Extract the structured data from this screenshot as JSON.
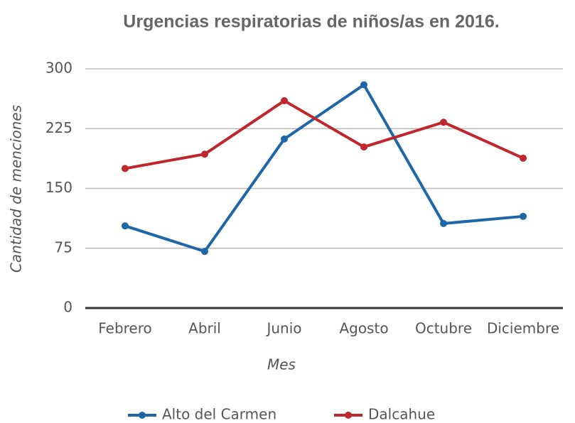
{
  "chart_data": {
    "type": "line",
    "title": "Urgencias respiratorias de niños/as en 2016.",
    "x_label": "Mes",
    "y_label": "Cantidad de menciones",
    "categories": [
      "Febrero",
      "Abril",
      "Junio",
      "Agosto",
      "Octubre",
      "Diciembre"
    ],
    "series": [
      {
        "name": "Alto del Carmen",
        "color": "#1f66a8",
        "values": [
          103,
          71,
          212,
          280,
          106,
          115
        ]
      },
      {
        "name": "Dalcahue",
        "color": "#c0272d",
        "values": [
          175,
          193,
          260,
          202,
          233,
          188
        ]
      }
    ],
    "ylim": [
      0,
      300
    ],
    "yticks": [
      0,
      75,
      150,
      225,
      300
    ],
    "grid": true,
    "legend": "bottom"
  }
}
